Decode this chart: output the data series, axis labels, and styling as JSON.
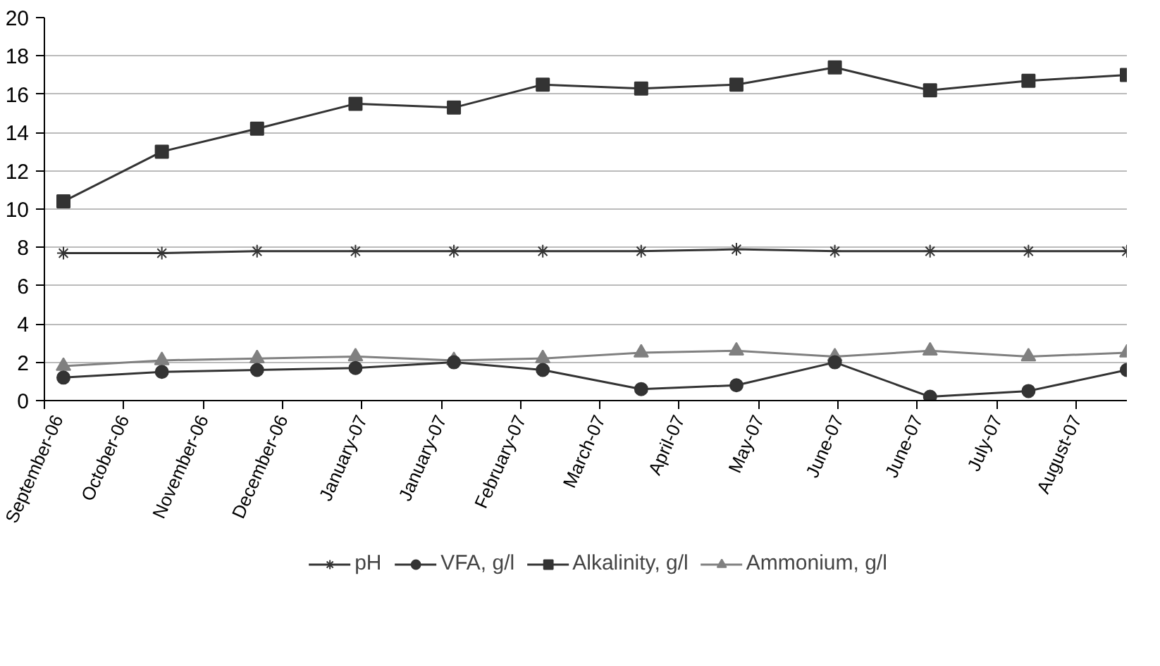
{
  "chart_data": {
    "type": "line",
    "xlim": [
      "2006-09-25",
      "2007-09-01"
    ],
    "ylim": [
      0,
      20
    ],
    "xticks": [
      {
        "value": "2006-09-25",
        "label": "September-06"
      },
      {
        "value": "2006-10-20",
        "label": "October-06"
      },
      {
        "value": "2006-11-14",
        "label": "November-06"
      },
      {
        "value": "2006-12-09",
        "label": "December-06"
      },
      {
        "value": "2007-01-03",
        "label": "January-07"
      },
      {
        "value": "2007-01-28",
        "label": "January-07"
      },
      {
        "value": "2007-02-22",
        "label": "February-07"
      },
      {
        "value": "2007-03-19",
        "label": "March-07"
      },
      {
        "value": "2007-04-13",
        "label": "April-07"
      },
      {
        "value": "2007-05-08",
        "label": "May-07"
      },
      {
        "value": "2007-06-02",
        "label": "June-07"
      },
      {
        "value": "2007-06-27",
        "label": "June-07"
      },
      {
        "value": "2007-07-22",
        "label": "July-07"
      },
      {
        "value": "2007-08-16",
        "label": "August-07"
      }
    ],
    "yticks": [
      0,
      2,
      4,
      6,
      8,
      10,
      12,
      14,
      16,
      18,
      20
    ],
    "x": [
      "2006-10-01",
      "2006-11-01",
      "2006-12-01",
      "2007-01-01",
      "2007-02-01",
      "2007-03-01",
      "2007-04-01",
      "2007-05-01",
      "2007-06-01",
      "2007-07-01",
      "2007-08-01",
      "2007-09-01"
    ],
    "grid": "y",
    "legend": "bottom",
    "line_style": "solid",
    "series": [
      {
        "name": "pH",
        "color": "#333333",
        "marker": "cross",
        "values": [
          7.7,
          7.7,
          7.8,
          7.8,
          7.8,
          7.8,
          7.8,
          7.9,
          7.8,
          7.8,
          7.8,
          7.8
        ]
      },
      {
        "name": "VFA, g/l",
        "color": "#333333",
        "marker": "circle",
        "values": [
          1.2,
          1.5,
          1.6,
          1.7,
          2.0,
          1.6,
          0.6,
          0.8,
          2.0,
          0.2,
          0.5,
          1.6
        ]
      },
      {
        "name": "Alkalinity, g/l",
        "color": "#333333",
        "marker": "square",
        "values": [
          10.4,
          13.0,
          14.2,
          15.5,
          15.3,
          16.5,
          16.3,
          16.5,
          17.4,
          16.2,
          16.7,
          17.0
        ]
      },
      {
        "name": "Ammonium, g/l",
        "color": "#808080",
        "marker": "triangle",
        "values": [
          1.8,
          2.1,
          2.2,
          2.3,
          2.1,
          2.2,
          2.5,
          2.6,
          2.3,
          2.6,
          2.3,
          2.5
        ]
      }
    ]
  }
}
